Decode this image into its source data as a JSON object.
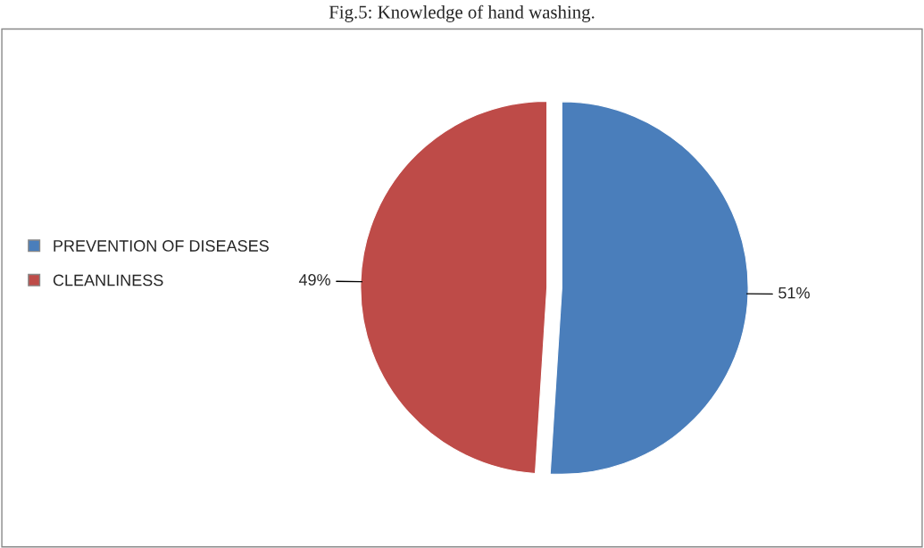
{
  "chart_data": {
    "type": "pie",
    "title": "Fig.5: Knowledge of hand washing.",
    "categories": [
      "PREVENTION OF DISEASES",
      "CLEANLINESS"
    ],
    "values": [
      51,
      49
    ],
    "colors": [
      "#4a7ebb",
      "#be4b48"
    ],
    "value_labels": [
      "51%",
      "49%"
    ],
    "legend": "left"
  }
}
